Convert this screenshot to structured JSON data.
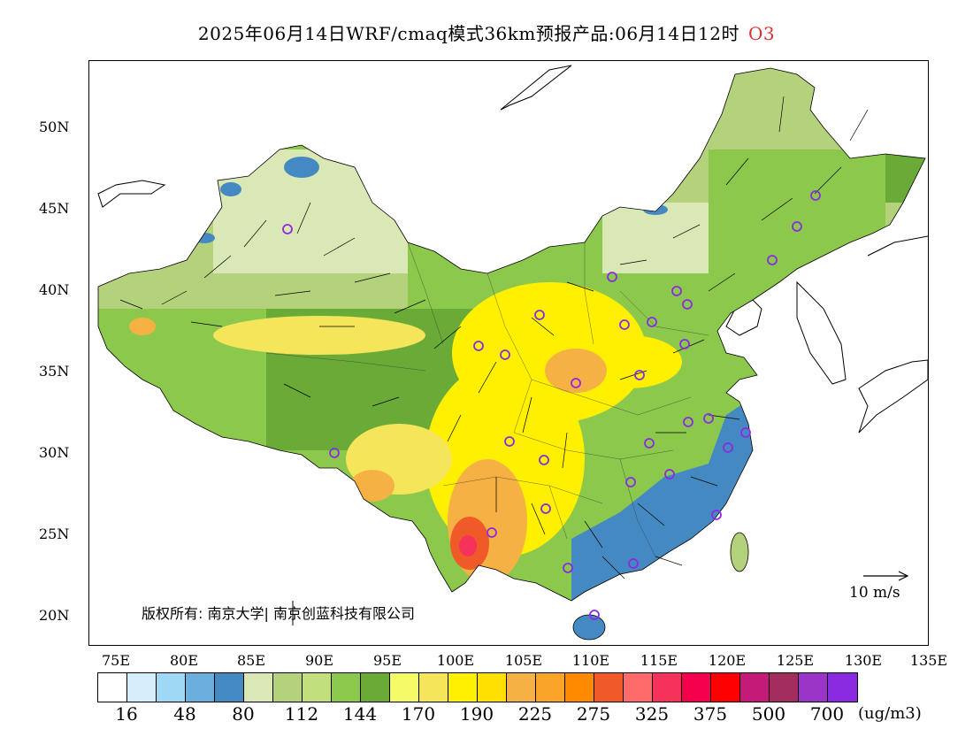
{
  "title": {
    "text": "2025年06月14日WRF/cmaq模式36km预报产品:06月14日12时",
    "pollutant": "O3",
    "pollutant_color": "#e03030"
  },
  "axes": {
    "lat_labels": [
      "50N",
      "45N",
      "40N",
      "35N",
      "30N",
      "25N",
      "20N"
    ],
    "lon_labels": [
      "75E",
      "80E",
      "85E",
      "90E",
      "95E",
      "100E",
      "105E",
      "110E",
      "115E",
      "120E",
      "125E",
      "130E",
      "135E"
    ]
  },
  "copyright": "版权所有: 南京大学| 南京创蓝科技有限公司",
  "wind_reference": {
    "label": "10 m/s",
    "icon": "arrow-right-icon"
  },
  "colorbar": {
    "colors": [
      "#ffffff",
      "#d5eefb",
      "#9ed8f5",
      "#6aaede",
      "#4589c2",
      "#d9e8b4",
      "#b4d27c",
      "#c2df7e",
      "#8cc84c",
      "#6aab38",
      "#f5fb66",
      "#f5e55a",
      "#fff000",
      "#ffe000",
      "#f6b144",
      "#fba528",
      "#ff8a00",
      "#f05a28",
      "#ff6b6b",
      "#f5335a",
      "#f5004c",
      "#ff0000",
      "#c41a78",
      "#a32d5c",
      "#9a35c8",
      "#8a2be2"
    ],
    "labels": [
      "16",
      "48",
      "80",
      "112",
      "144",
      "170",
      "190",
      "225",
      "275",
      "325",
      "375",
      "500",
      "700"
    ],
    "units": "(ug/m3)"
  },
  "map_colors": {
    "low_blue": "#4589c2",
    "light_green": "#d9e8b4",
    "mid_green": "#b4d27c",
    "green": "#8cc84c",
    "dark_green": "#6aab38",
    "yellow": "#fff000",
    "pale_yellow": "#f5e55a",
    "orange": "#f6b144",
    "red_orange": "#f05a28",
    "hot_red": "#f5335a",
    "station_marker": "#8a2be2",
    "sea": "#ffffff"
  }
}
